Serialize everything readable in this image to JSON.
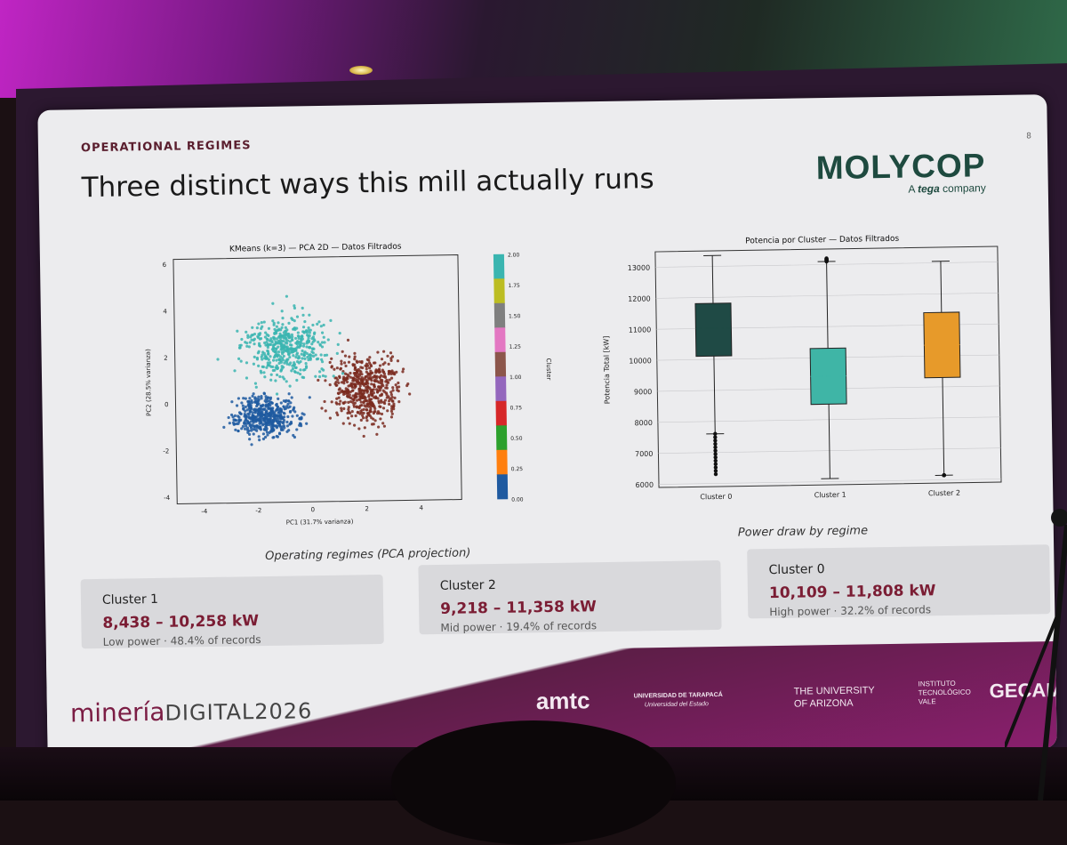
{
  "slide": {
    "section": "OPERATIONAL REGIMES",
    "page_number": "8",
    "title": "Three distinct ways this mill actually runs",
    "logo": {
      "name": "MOLYCOP",
      "tagline_prefix": "A",
      "tagline_brand": "tega",
      "tagline_suffix": "company"
    }
  },
  "scatter": {
    "title": "KMeans (k=3) — PCA 2D — Datos Filtrados",
    "xlabel": "PC1 (31.7% varianza)",
    "ylabel": "PC2 (28.5% varianza)",
    "x_ticks": [
      "-4",
      "-2",
      "0",
      "2",
      "4"
    ],
    "y_ticks": [
      "6",
      "4",
      "2",
      "0",
      "-2",
      "-4"
    ],
    "colorbar_label": "Cluster",
    "colorbar_ticks": [
      "2.00",
      "1.75",
      "1.50",
      "1.25",
      "1.00",
      "0.75",
      "0.50",
      "0.25",
      "0.00"
    ],
    "caption": "Operating regimes (PCA projection)"
  },
  "boxplot": {
    "title": "Potencia por Cluster — Datos Filtrados",
    "ylabel": "Potencia Total [kW]",
    "y_ticks": [
      "13000",
      "12000",
      "11000",
      "10000",
      "9000",
      "8000",
      "7000",
      "6000"
    ],
    "caption": "Power draw by regime"
  },
  "chart_data": {
    "type": "box",
    "title": "Potencia por Cluster — Datos Filtrados",
    "xlabel": "",
    "ylabel": "Potencia Total [kW]",
    "ylim": [
      5900,
      13500
    ],
    "categories": [
      "Cluster 0",
      "Cluster 1",
      "Cluster 2"
    ],
    "colors": [
      "#1f4a45",
      "#3fb5a6",
      "#e79a2a"
    ],
    "series": [
      {
        "q1": 10109,
        "median": 11000,
        "q3": 11808,
        "whisker_low": 7600,
        "whisker_high": 13350,
        "outliers_range": [
          6300,
          7600
        ]
      },
      {
        "q1": 8500,
        "median": 9400,
        "q3": 10300,
        "whisker_low": 6100,
        "whisker_high": 13100,
        "outliers_range": [
          13100,
          13200
        ]
      },
      {
        "q1": 9300,
        "median": 10350,
        "q3": 11400,
        "whisker_low": 6150,
        "whisker_high": 13050,
        "outliers_range": [
          6150,
          6150
        ]
      }
    ]
  },
  "cards": [
    {
      "title": "Cluster 1",
      "range": "8,438 – 10,258 kW",
      "note": "Low power · 48.4% of records"
    },
    {
      "title": "Cluster 2",
      "range": "9,218 – 11,358 kW",
      "note": "Mid power · 19.4% of records"
    },
    {
      "title": "Cluster 0",
      "range": "10,109 – 11,808 kW",
      "note": "High power · 32.2% of records"
    }
  ],
  "footer": {
    "event_main": "minería",
    "event_digital": "DIGITAL2026",
    "partners": [
      "amtc",
      "UNIVERSIDAD DE TARAPACÁ",
      "Universidad del Estado",
      "THE UNIVERSITY",
      "OF ARIZONA",
      "INSTITUTO",
      "TECNOLÓGICO",
      "VALE",
      "GECAMIN"
    ]
  },
  "colors": {
    "cluster0_scatter": "#7a2a1f",
    "cluster1_scatter": "#1f5aa0",
    "cluster2_scatter": "#3ab5b0",
    "brand": "#1e4a3f",
    "accent": "#7b1d34"
  }
}
